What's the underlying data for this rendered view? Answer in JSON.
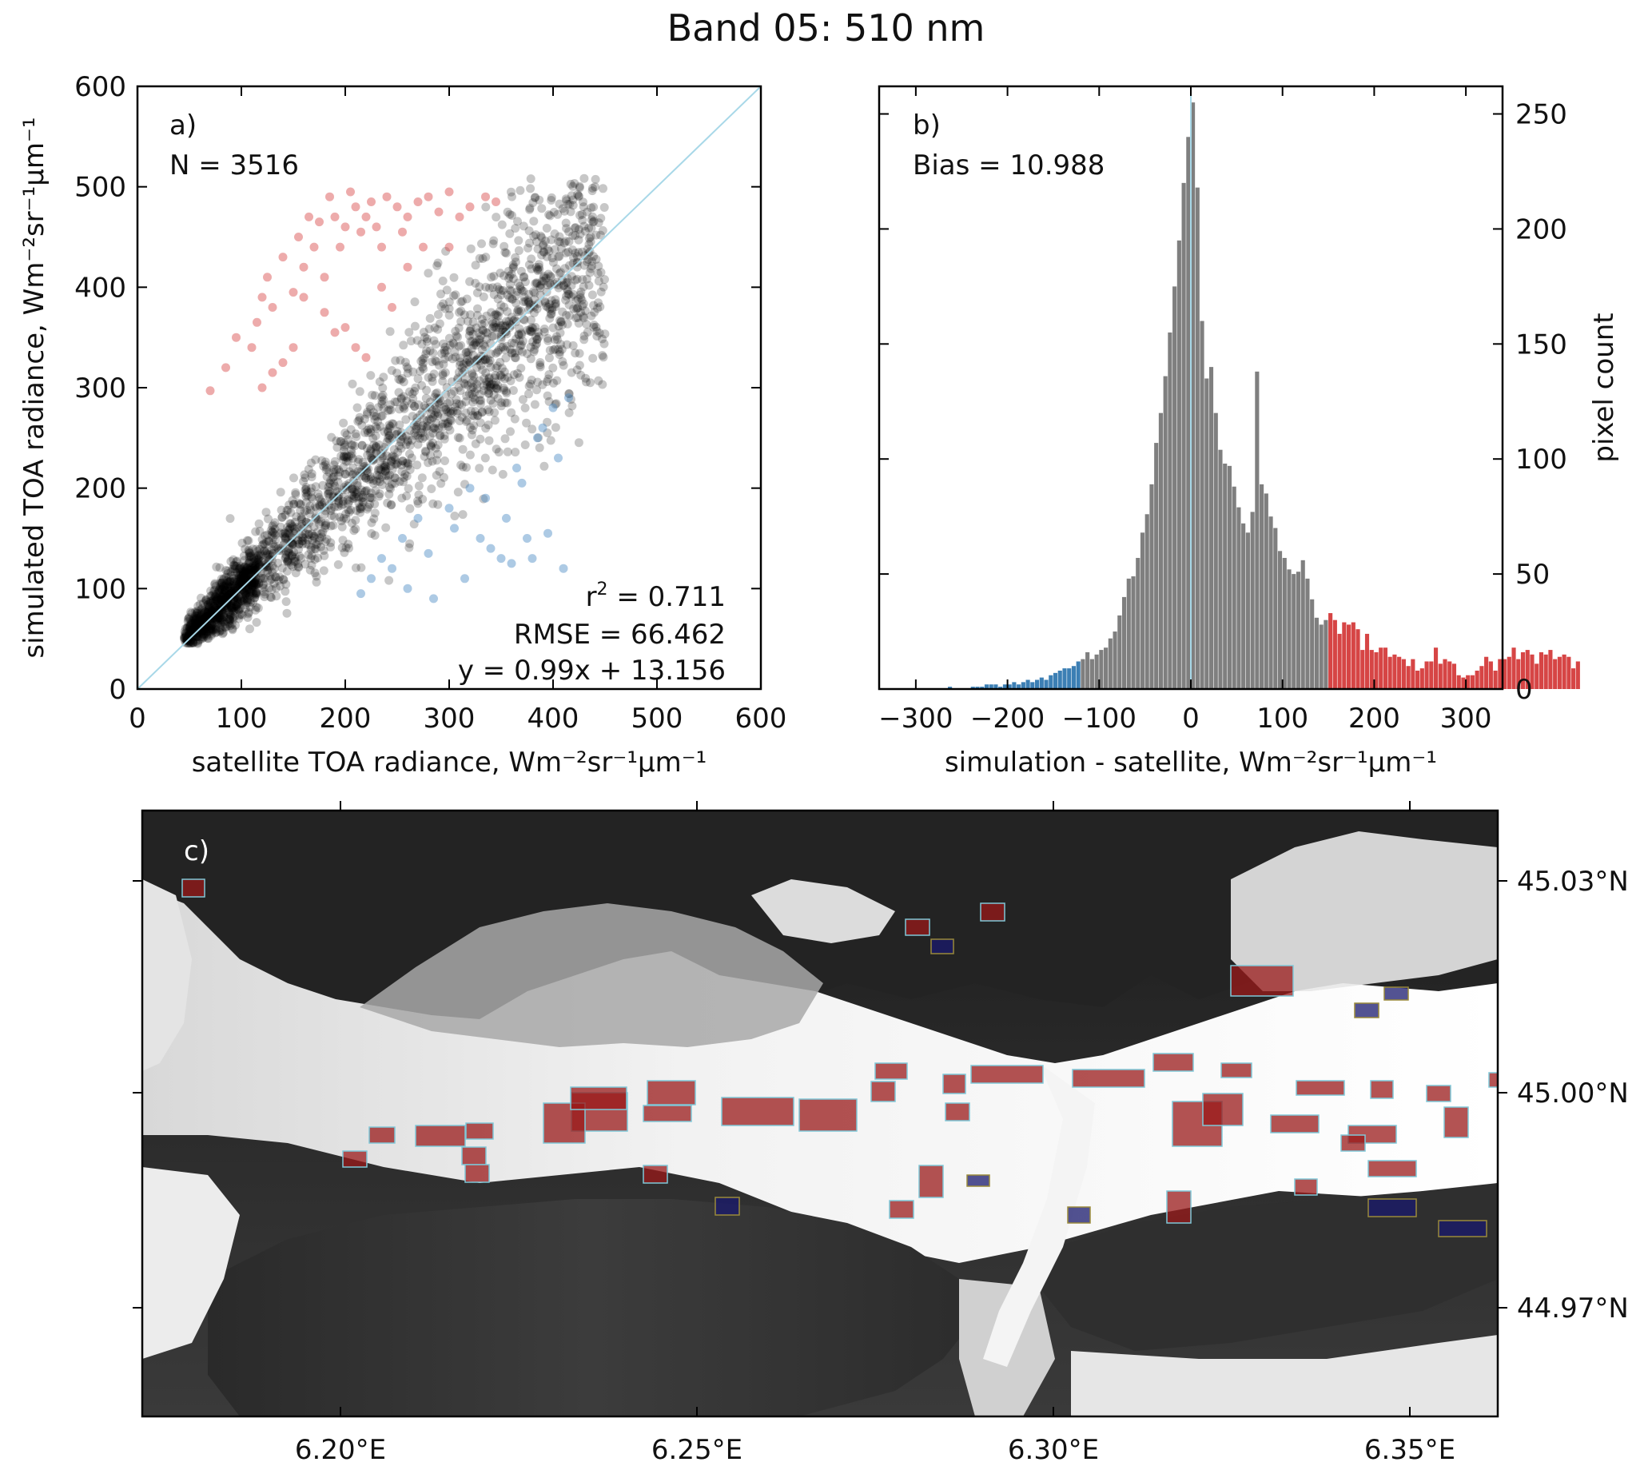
{
  "figure_title": "Band 05: 510 nm",
  "chart_data": [
    {
      "type": "scatter",
      "panel_label": "a)",
      "annotations": {
        "n": "N = 3516",
        "r2_prefix": "r",
        "r2_sup": "2",
        "r2_value": " = 0.711",
        "rmse": "RMSE = 66.462",
        "fit": "y = 0.99x + 13.156"
      },
      "xlabel": "satellite TOA radiance, Wm⁻²sr⁻¹μm⁻¹",
      "ylabel": "simulated TOA radiance, Wm⁻²sr⁻¹μm⁻¹",
      "xlim": [
        0,
        600
      ],
      "ylim": [
        0,
        600
      ],
      "xticks": [
        "0",
        "100",
        "200",
        "300",
        "400",
        "500",
        "600"
      ],
      "yticks": [
        "0",
        "100",
        "200",
        "300",
        "400",
        "500",
        "600"
      ],
      "one_to_one_line": {
        "from": [
          0,
          0
        ],
        "to": [
          600,
          600
        ],
        "color": "#a8d8e8"
      },
      "series": [
        {
          "color": "#000000",
          "count": 3516,
          "description_points": [
            [
              50,
              50
            ],
            [
              100,
              95
            ],
            [
              200,
              210
            ],
            [
              300,
              300
            ],
            [
              400,
              400
            ],
            [
              450,
              430
            ]
          ]
        },
        {
          "color": "#d64545",
          "values": [
            [
              70,
              297
            ],
            [
              85,
              320
            ],
            [
              95,
              350
            ],
            [
              110,
              340
            ],
            [
              115,
              365
            ],
            [
              120,
              390
            ],
            [
              125,
              410
            ],
            [
              130,
              380
            ],
            [
              140,
              430
            ],
            [
              150,
              395
            ],
            [
              155,
              450
            ],
            [
              160,
              420
            ],
            [
              165,
              470
            ],
            [
              170,
              440
            ],
            [
              175,
              465
            ],
            [
              180,
              410
            ],
            [
              185,
              490
            ],
            [
              190,
              470
            ],
            [
              195,
              440
            ],
            [
              200,
              460
            ],
            [
              205,
              495
            ],
            [
              210,
              480
            ],
            [
              215,
              455
            ],
            [
              220,
              470
            ],
            [
              225,
              485
            ],
            [
              230,
              460
            ],
            [
              235,
              440
            ],
            [
              240,
              490
            ],
            [
              250,
              480
            ],
            [
              255,
              455
            ],
            [
              260,
              470
            ],
            [
              270,
              485
            ],
            [
              280,
              490
            ],
            [
              290,
              475
            ],
            [
              300,
              495
            ],
            [
              310,
              470
            ],
            [
              320,
              480
            ],
            [
              335,
              490
            ],
            [
              345,
              485
            ],
            [
              200,
              360
            ],
            [
              210,
              340
            ],
            [
              220,
              330
            ],
            [
              180,
              375
            ],
            [
              190,
              355
            ],
            [
              235,
              400
            ],
            [
              245,
              380
            ],
            [
              260,
              420
            ],
            [
              275,
              440
            ],
            [
              300,
              440
            ],
            [
              150,
              340
            ],
            [
              140,
              325
            ],
            [
              130,
              315
            ],
            [
              120,
              300
            ],
            [
              160,
              390
            ]
          ]
        },
        {
          "color": "#4a8ac4",
          "values": [
            [
              215,
              95
            ],
            [
              225,
              110
            ],
            [
              235,
              130
            ],
            [
              245,
              120
            ],
            [
              255,
              150
            ],
            [
              260,
              100
            ],
            [
              270,
              170
            ],
            [
              280,
              135
            ],
            [
              285,
              90
            ],
            [
              300,
              180
            ],
            [
              305,
              160
            ],
            [
              315,
              110
            ],
            [
              320,
              200
            ],
            [
              330,
              150
            ],
            [
              335,
              190
            ],
            [
              340,
              140
            ],
            [
              350,
              130
            ],
            [
              355,
              170
            ],
            [
              360,
              125
            ],
            [
              365,
              220
            ],
            [
              370,
              205
            ],
            [
              375,
              150
            ],
            [
              380,
              130
            ],
            [
              385,
              250
            ],
            [
              390,
              260
            ],
            [
              395,
              155
            ],
            [
              400,
              280
            ],
            [
              405,
              230
            ],
            [
              410,
              120
            ],
            [
              415,
              290
            ]
          ]
        }
      ]
    },
    {
      "type": "bar",
      "panel_label": "b)",
      "annotations": {
        "bias": "Bias = 10.988"
      },
      "xlabel": "simulation - satellite, Wm⁻²sr⁻¹μm⁻¹",
      "ylabel": "pixel count",
      "xlim": [
        -340,
        340
      ],
      "ylim": [
        0,
        262
      ],
      "xticks": [
        "−300",
        "−200",
        "−100",
        "0",
        "100",
        "200",
        "300"
      ],
      "yticks": [
        "0",
        "50",
        "100",
        "150",
        "200",
        "250"
      ],
      "bin_width": 5,
      "bin_start": -265,
      "zero_line_color": "#a8d8e8",
      "colors": {
        "low": "#3c7fb4",
        "mid": "#7f7f7f",
        "high": "#d64545"
      },
      "low_threshold": -120,
      "high_threshold": 150,
      "values": [
        1,
        0,
        0,
        0,
        0,
        1,
        1,
        1,
        2,
        2,
        2,
        1,
        2,
        2,
        3,
        2,
        3,
        4,
        3,
        4,
        5,
        4,
        6,
        7,
        8,
        9,
        9,
        10,
        12,
        13,
        16,
        13,
        15,
        17,
        18,
        22,
        25,
        32,
        40,
        48,
        49,
        57,
        68,
        76,
        89,
        107,
        120,
        136,
        155,
        175,
        195,
        220,
        240,
        255,
        218,
        160,
        135,
        140,
        120,
        104,
        98,
        97,
        88,
        79,
        72,
        68,
        77,
        138,
        89,
        85,
        75,
        70,
        60,
        57,
        52,
        50,
        51,
        56,
        48,
        39,
        31,
        28,
        30,
        33,
        30,
        24,
        29,
        28,
        29,
        26,
        17,
        24,
        17,
        16,
        18,
        18,
        14,
        15,
        14,
        13,
        10,
        13,
        8,
        9,
        12,
        12,
        18,
        11,
        13,
        12,
        11,
        6,
        5,
        6,
        6,
        8,
        10,
        14,
        12,
        8,
        13,
        13,
        14,
        18,
        13,
        16,
        17,
        15,
        11,
        16,
        15,
        17,
        13,
        14,
        15,
        14,
        9,
        12
      ],
      "axis_side": "right"
    },
    {
      "type": "image_map",
      "panel_label": "c)",
      "xticks": [
        "6.20°E",
        "6.25°E",
        "6.30°E",
        "6.35°E"
      ],
      "yticks": [
        "45.03°N",
        "45.00°N",
        "44.97°N"
      ],
      "colors": {
        "positive": "#9a1a1a",
        "negative": "#1a1a6e",
        "outline": "#7fc8d8"
      }
    }
  ]
}
